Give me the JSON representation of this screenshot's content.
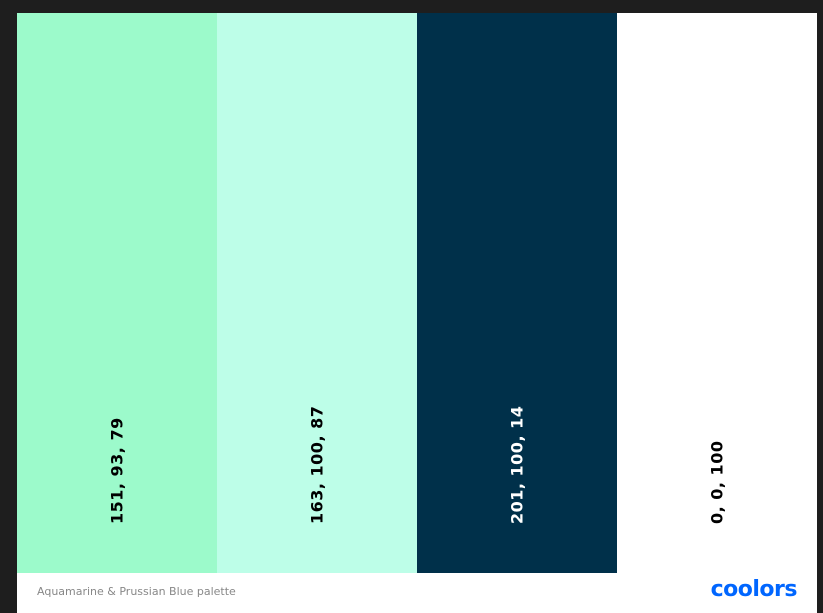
{
  "palette": {
    "swatches": [
      {
        "label": "151, 93, 79",
        "color": "#9cfacb",
        "text_color": "#000000"
      },
      {
        "label": "163, 100, 87",
        "color": "#bdfee8",
        "text_color": "#000000"
      },
      {
        "label": "201, 100, 14",
        "color": "#00304a",
        "text_color": "#ffffff"
      },
      {
        "label": "0, 0, 100",
        "color": "#ffffff",
        "text_color": "#000000"
      }
    ],
    "footer": {
      "title": "Aquamarine & Prussian Blue palette",
      "logo": "coolors"
    }
  }
}
